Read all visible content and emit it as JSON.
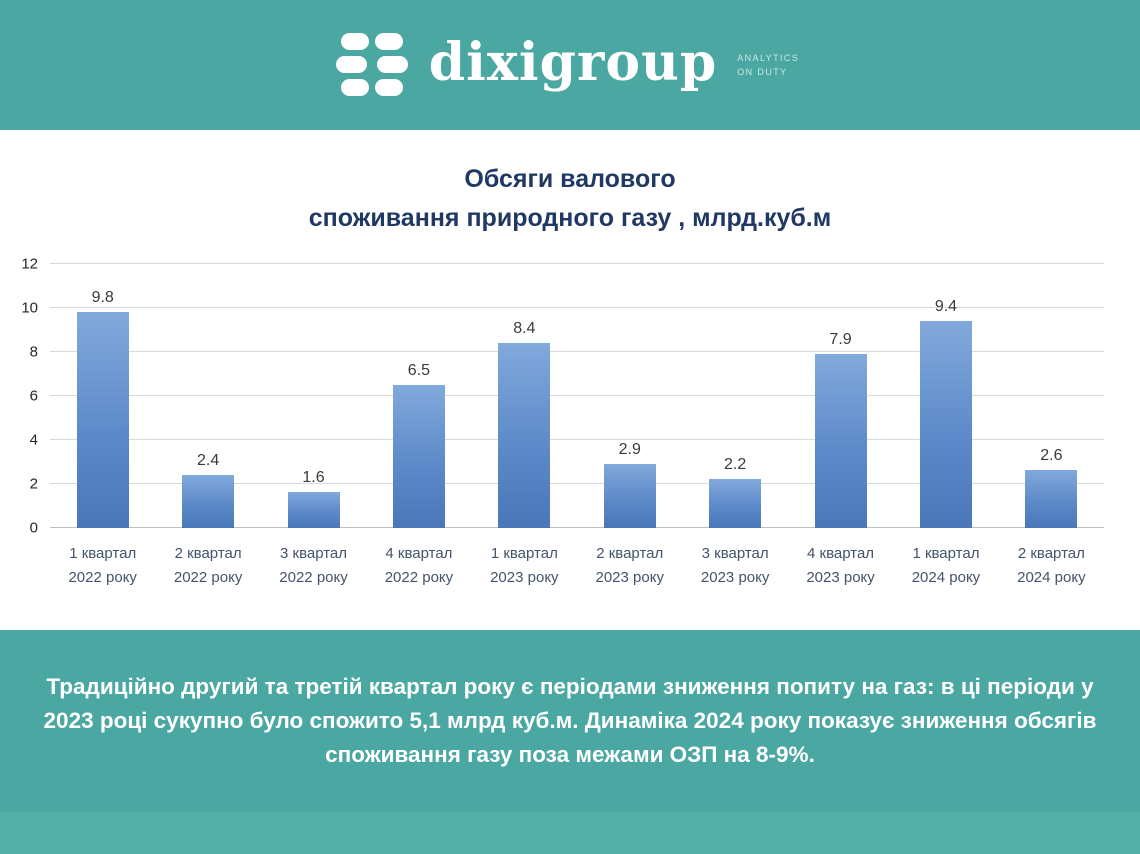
{
  "header": {
    "logo_text": "dixigroup",
    "logo_tagline": "ANALYTICS ON DUTY"
  },
  "chart_data": {
    "type": "bar",
    "title_line1": "Обсяги валового",
    "title_line2": "споживання природного газу , млрд.куб.м",
    "categories": [
      [
        "1 квартал",
        "2022 року"
      ],
      [
        "2 квартал",
        "2022 року"
      ],
      [
        "3 квартал",
        "2022 року"
      ],
      [
        "4 квартал",
        "2022 року"
      ],
      [
        "1 квартал",
        "2023 року"
      ],
      [
        "2 квартал",
        "2023 року"
      ],
      [
        "3 квартал",
        "2023 року"
      ],
      [
        "4 квартал",
        "2023 року"
      ],
      [
        "1 квартал",
        "2024 року"
      ],
      [
        "2 квартал",
        "2024 року"
      ]
    ],
    "values": [
      9.8,
      2.4,
      1.6,
      6.5,
      8.4,
      2.9,
      2.2,
      7.9,
      9.4,
      2.6
    ],
    "ylim": [
      0,
      12
    ],
    "yticks": [
      0,
      2,
      4,
      6,
      8,
      10,
      12
    ],
    "grid": true,
    "legend": "none",
    "bar_gradient": [
      "#82A9DC",
      "#4A77B8"
    ]
  },
  "footer": {
    "text": "Традиційно другий та третій квартал року є періодами зниження попиту на газ: в ці періоди у 2023 році сукупно було спожито 5,1 млрд куб.м. Динаміка 2024 року показує зниження обсягів споживання газу поза межами ОЗП на 8-9%."
  },
  "colors": {
    "banner_teal": "#4AA7A1",
    "title_navy": "#203864",
    "bar_blue": "#5D8AC9",
    "gridline_gray": "#D9D9D9"
  }
}
